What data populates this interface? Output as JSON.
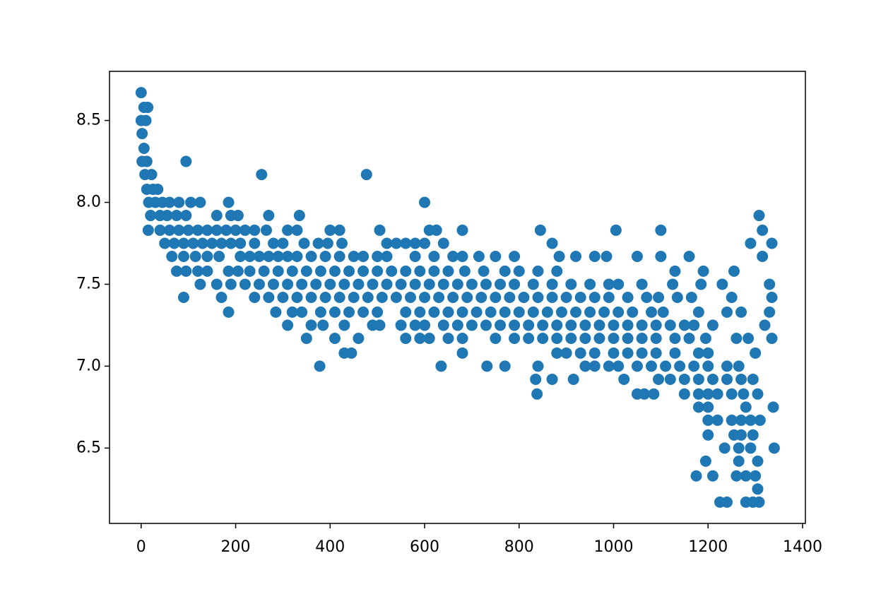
{
  "chart_data": {
    "type": "scatter",
    "color": "#1f77b4",
    "xlim": [
      -67,
      1406
    ],
    "ylim": [
      6.04,
      8.8
    ],
    "xticks": [
      0,
      200,
      400,
      600,
      800,
      1000,
      1200,
      1400
    ],
    "yticks": [
      6.5,
      {
        "value": 7,
        "label": "7.0"
      },
      7.5,
      {
        "value": 8,
        "label": "8.0"
      },
      8.5
    ],
    "x": [
      0,
      6,
      14,
      0,
      10,
      2,
      6,
      2,
      12,
      95,
      8,
      22,
      255,
      477,
      12,
      25,
      35,
      16,
      30,
      45,
      60,
      80,
      105,
      125,
      185,
      600,
      20,
      40,
      55,
      75,
      95,
      160,
      190,
      205,
      270,
      335,
      1308,
      15,
      40,
      60,
      80,
      100,
      120,
      140,
      160,
      180,
      200,
      220,
      240,
      265,
      310,
      330,
      400,
      420,
      505,
      610,
      625,
      680,
      845,
      1005,
      1100,
      1315,
      50,
      70,
      90,
      110,
      130,
      150,
      170,
      190,
      210,
      240,
      280,
      300,
      345,
      375,
      395,
      425,
      520,
      540,
      560,
      580,
      600,
      640,
      870,
      1290,
      1335,
      65,
      90,
      115,
      140,
      165,
      210,
      230,
      250,
      270,
      290,
      310,
      330,
      360,
      390,
      420,
      450,
      470,
      500,
      520,
      580,
      620,
      660,
      680,
      715,
      750,
      790,
      885,
      920,
      960,
      985,
      1050,
      1100,
      1160,
      1315,
      75,
      95,
      120,
      140,
      185,
      205,
      230,
      260,
      290,
      320,
      350,
      380,
      410,
      440,
      470,
      500,
      530,
      560,
      590,
      620,
      650,
      685,
      725,
      770,
      800,
      840,
      880,
      1130,
      1190,
      1255,
      125,
      160,
      190,
      220,
      250,
      280,
      310,
      340,
      370,
      400,
      430,
      460,
      490,
      520,
      550,
      580,
      610,
      640,
      670,
      700,
      730,
      760,
      790,
      830,
      870,
      910,
      950,
      990,
      1010,
      1060,
      1125,
      1185,
      1230,
      1330,
      90,
      170,
      240,
      270,
      300,
      330,
      360,
      390,
      420,
      450,
      480,
      510,
      540,
      570,
      600,
      630,
      660,
      690,
      720,
      750,
      780,
      810,
      840,
      870,
      900,
      930,
      960,
      990,
      1030,
      1070,
      1095,
      1135,
      1165,
      1250,
      1335,
      185,
      285,
      320,
      340,
      380,
      410,
      440,
      470,
      500,
      560,
      590,
      620,
      650,
      680,
      710,
      740,
      770,
      800,
      830,
      860,
      890,
      920,
      950,
      980,
      1010,
      1040,
      1080,
      1105,
      1180,
      1240,
      1270,
      1330,
      310,
      360,
      385,
      430,
      490,
      505,
      550,
      580,
      600,
      640,
      670,
      700,
      730,
      760,
      790,
      820,
      850,
      880,
      910,
      940,
      970,
      1000,
      1030,
      1060,
      1090,
      1120,
      1150,
      1170,
      1210,
      1320,
      350,
      410,
      460,
      560,
      590,
      610,
      650,
      680,
      750,
      790,
      820,
      850,
      880,
      910,
      940,
      970,
      1000,
      1030,
      1060,
      1090,
      1130,
      1160,
      1195,
      1260,
      1285,
      1335,
      430,
      445,
      680,
      880,
      900,
      930,
      960,
      1000,
      1030,
      1060,
      1090,
      1130,
      1180,
      1200,
      1300,
      378,
      635,
      732,
      770,
      840,
      940,
      960,
      990,
      1010,
      1050,
      1080,
      1110,
      1140,
      1170,
      1200,
      1240,
      1265,
      835,
      870,
      915,
      1022,
      1095,
      1120,
      1150,
      1180,
      1210,
      1240,
      1270,
      1295,
      838,
      1050,
      1065,
      1085,
      1150,
      1180,
      1200,
      1220,
      1250,
      1275,
      1305,
      1180,
      1200,
      1280,
      1338,
      1200,
      1220,
      1250,
      1270,
      1290,
      1310,
      1200,
      1255,
      1270,
      1295,
      1235,
      1265,
      1290,
      1340,
      1195,
      1265,
      1305,
      1175,
      1210,
      1260,
      1280,
      1300,
      1305,
      1225,
      1240,
      1280,
      1295,
      1308
    ],
    "values": [
      8.67,
      8.58,
      8.58,
      8.5,
      8.5,
      8.42,
      8.33,
      8.25,
      8.25,
      8.25,
      8.17,
      8.17,
      8.17,
      8.17,
      8.08,
      8.08,
      8.08,
      8,
      8,
      8,
      8,
      8,
      8,
      8,
      8,
      8,
      7.92,
      7.92,
      7.92,
      7.92,
      7.92,
      7.92,
      7.92,
      7.92,
      7.92,
      7.92,
      7.92,
      7.83,
      7.83,
      7.83,
      7.83,
      7.83,
      7.83,
      7.83,
      7.83,
      7.83,
      7.83,
      7.83,
      7.83,
      7.83,
      7.83,
      7.83,
      7.83,
      7.83,
      7.83,
      7.83,
      7.83,
      7.83,
      7.83,
      7.83,
      7.83,
      7.83,
      7.75,
      7.75,
      7.75,
      7.75,
      7.75,
      7.75,
      7.75,
      7.75,
      7.75,
      7.75,
      7.75,
      7.75,
      7.75,
      7.75,
      7.75,
      7.75,
      7.75,
      7.75,
      7.75,
      7.75,
      7.75,
      7.75,
      7.75,
      7.75,
      7.75,
      7.67,
      7.67,
      7.67,
      7.67,
      7.67,
      7.67,
      7.67,
      7.67,
      7.67,
      7.67,
      7.67,
      7.67,
      7.67,
      7.67,
      7.67,
      7.67,
      7.67,
      7.67,
      7.67,
      7.67,
      7.67,
      7.67,
      7.67,
      7.67,
      7.67,
      7.67,
      7.67,
      7.67,
      7.67,
      7.67,
      7.67,
      7.67,
      7.67,
      7.67,
      7.58,
      7.58,
      7.58,
      7.58,
      7.58,
      7.58,
      7.58,
      7.58,
      7.58,
      7.58,
      7.58,
      7.58,
      7.58,
      7.58,
      7.58,
      7.58,
      7.58,
      7.58,
      7.58,
      7.58,
      7.58,
      7.58,
      7.58,
      7.58,
      7.58,
      7.58,
      7.58,
      7.58,
      7.58,
      7.58,
      7.5,
      7.5,
      7.5,
      7.5,
      7.5,
      7.5,
      7.5,
      7.5,
      7.5,
      7.5,
      7.5,
      7.5,
      7.5,
      7.5,
      7.5,
      7.5,
      7.5,
      7.5,
      7.5,
      7.5,
      7.5,
      7.5,
      7.5,
      7.5,
      7.5,
      7.5,
      7.5,
      7.5,
      7.5,
      7.5,
      7.5,
      7.5,
      7.5,
      7.5,
      7.42,
      7.42,
      7.42,
      7.42,
      7.42,
      7.42,
      7.42,
      7.42,
      7.42,
      7.42,
      7.42,
      7.42,
      7.42,
      7.42,
      7.42,
      7.42,
      7.42,
      7.42,
      7.42,
      7.42,
      7.42,
      7.42,
      7.42,
      7.42,
      7.42,
      7.42,
      7.42,
      7.42,
      7.42,
      7.42,
      7.42,
      7.42,
      7.42,
      7.42,
      7.42,
      7.33,
      7.33,
      7.33,
      7.33,
      7.33,
      7.33,
      7.33,
      7.33,
      7.33,
      7.33,
      7.33,
      7.33,
      7.33,
      7.33,
      7.33,
      7.33,
      7.33,
      7.33,
      7.33,
      7.33,
      7.33,
      7.33,
      7.33,
      7.33,
      7.33,
      7.33,
      7.33,
      7.33,
      7.33,
      7.33,
      7.33,
      7.33,
      7.25,
      7.25,
      7.25,
      7.25,
      7.25,
      7.25,
      7.25,
      7.25,
      7.25,
      7.25,
      7.25,
      7.25,
      7.25,
      7.25,
      7.25,
      7.25,
      7.25,
      7.25,
      7.25,
      7.25,
      7.25,
      7.25,
      7.25,
      7.25,
      7.25,
      7.25,
      7.25,
      7.25,
      7.25,
      7.25,
      7.17,
      7.17,
      7.17,
      7.17,
      7.17,
      7.17,
      7.17,
      7.17,
      7.17,
      7.17,
      7.17,
      7.17,
      7.17,
      7.17,
      7.17,
      7.17,
      7.17,
      7.17,
      7.17,
      7.17,
      7.17,
      7.17,
      7.17,
      7.17,
      7.17,
      7.17,
      7.08,
      7.08,
      7.08,
      7.08,
      7.08,
      7.08,
      7.08,
      7.08,
      7.08,
      7.08,
      7.08,
      7.08,
      7.08,
      7.08,
      7.08,
      7,
      7,
      7,
      7,
      7,
      7,
      7,
      7,
      7,
      7,
      7,
      7,
      7,
      7,
      7,
      7,
      7,
      6.92,
      6.92,
      6.92,
      6.92,
      6.92,
      6.92,
      6.92,
      6.92,
      6.92,
      6.92,
      6.92,
      6.92,
      6.83,
      6.83,
      6.83,
      6.83,
      6.83,
      6.83,
      6.83,
      6.83,
      6.83,
      6.83,
      6.83,
      6.75,
      6.75,
      6.75,
      6.75,
      6.67,
      6.67,
      6.67,
      6.67,
      6.67,
      6.67,
      6.58,
      6.58,
      6.58,
      6.58,
      6.5,
      6.5,
      6.5,
      6.5,
      6.42,
      6.42,
      6.42,
      6.33,
      6.33,
      6.33,
      6.33,
      6.33,
      6.25,
      6.17,
      6.17,
      6.17,
      6.17,
      6.17
    ]
  }
}
